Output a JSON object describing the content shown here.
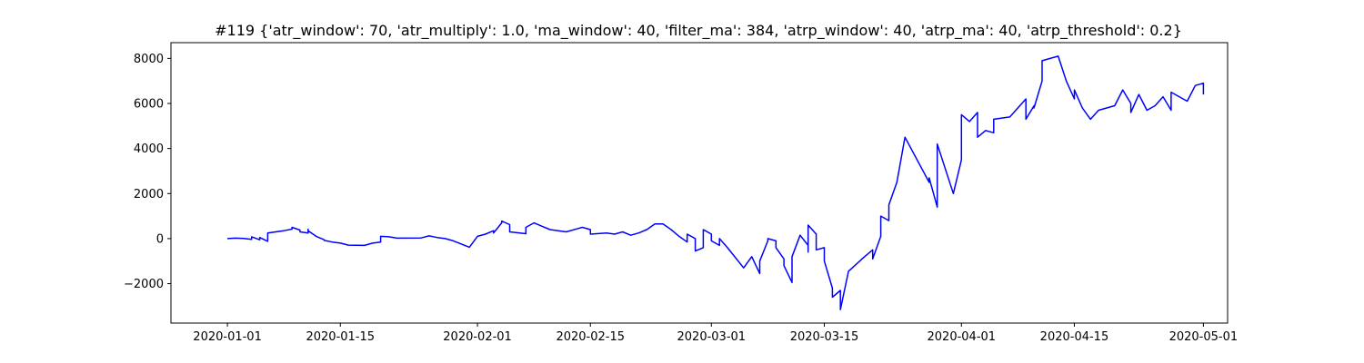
{
  "chart_data": {
    "type": "line",
    "title": "#119 {'atr_window': 70, 'atr_multiply': 1.0, 'ma_window': 40, 'filter_ma': 384, 'atrp_window': 40, 'atrp_ma': 40, 'atrp_threshold': 0.2}",
    "xlabel": "",
    "ylabel": "",
    "grid": false,
    "legend": "none",
    "x_type": "date",
    "xlim": [
      "2019-12-25",
      "2020-05-04"
    ],
    "ylim": [
      -3750,
      8700
    ],
    "x_ticks": [
      "2020-01-01",
      "2020-01-15",
      "2020-02-01",
      "2020-02-15",
      "2020-03-01",
      "2020-03-15",
      "2020-04-01",
      "2020-04-15",
      "2020-05-01"
    ],
    "y_ticks": [
      -2000,
      0,
      2000,
      4000,
      6000,
      8000
    ],
    "series": [
      {
        "color": "#0000ff",
        "points": [
          [
            "2020-01-01",
            0
          ],
          [
            "2020-01-02",
            20
          ],
          [
            "2020-01-03",
            10
          ],
          [
            "2020-01-04",
            -30
          ],
          [
            "2020-01-04",
            80
          ],
          [
            "2020-01-05",
            -50
          ],
          [
            "2020-01-05",
            50
          ],
          [
            "2020-01-06",
            -120
          ],
          [
            "2020-01-06",
            250
          ],
          [
            "2020-01-08",
            350
          ],
          [
            "2020-01-09",
            420
          ],
          [
            "2020-01-09",
            500
          ],
          [
            "2020-01-10",
            380
          ],
          [
            "2020-01-10",
            300
          ],
          [
            "2020-01-11",
            250
          ],
          [
            "2020-01-11",
            420
          ],
          [
            "2020-01-11",
            350
          ],
          [
            "2020-01-12",
            100
          ],
          [
            "2020-01-13",
            -50
          ],
          [
            "2020-01-13",
            -80
          ],
          [
            "2020-01-14",
            -150
          ],
          [
            "2020-01-15",
            -200
          ],
          [
            "2020-01-16",
            -290
          ],
          [
            "2020-01-18",
            -300
          ],
          [
            "2020-01-19",
            -200
          ],
          [
            "2020-01-20",
            -150
          ],
          [
            "2020-01-20",
            100
          ],
          [
            "2020-01-21",
            80
          ],
          [
            "2020-01-22",
            20
          ],
          [
            "2020-01-25",
            30
          ],
          [
            "2020-01-26",
            120
          ],
          [
            "2020-01-27",
            50
          ],
          [
            "2020-01-28",
            0
          ],
          [
            "2020-01-29",
            -100
          ],
          [
            "2020-01-31",
            -380
          ],
          [
            "2020-02-01",
            100
          ],
          [
            "2020-02-02",
            200
          ],
          [
            "2020-02-03",
            350
          ],
          [
            "2020-02-03",
            250
          ],
          [
            "2020-02-04",
            700
          ],
          [
            "2020-02-04",
            780
          ],
          [
            "2020-02-05",
            620
          ],
          [
            "2020-02-05",
            300
          ],
          [
            "2020-02-07",
            220
          ],
          [
            "2020-02-07",
            500
          ],
          [
            "2020-02-08",
            700
          ],
          [
            "2020-02-09",
            550
          ],
          [
            "2020-02-10",
            400
          ],
          [
            "2020-02-11",
            350
          ],
          [
            "2020-02-12",
            300
          ],
          [
            "2020-02-14",
            500
          ],
          [
            "2020-02-15",
            400
          ],
          [
            "2020-02-15",
            200
          ],
          [
            "2020-02-17",
            250
          ],
          [
            "2020-02-18",
            200
          ],
          [
            "2020-02-19",
            300
          ],
          [
            "2020-02-20",
            150
          ],
          [
            "2020-02-21",
            250
          ],
          [
            "2020-02-22",
            400
          ],
          [
            "2020-02-23",
            650
          ],
          [
            "2020-02-24",
            650
          ],
          [
            "2020-02-25",
            400
          ],
          [
            "2020-02-26",
            100
          ],
          [
            "2020-02-27",
            -150
          ],
          [
            "2020-02-27",
            200
          ],
          [
            "2020-02-28",
            0
          ],
          [
            "2020-02-28",
            -550
          ],
          [
            "2020-02-29",
            -400
          ],
          [
            "2020-02-29",
            400
          ],
          [
            "2020-03-01",
            200
          ],
          [
            "2020-03-01",
            -100
          ],
          [
            "2020-03-02",
            -300
          ],
          [
            "2020-03-02",
            0
          ],
          [
            "2020-03-03",
            -400
          ],
          [
            "2020-03-05",
            -1300
          ],
          [
            "2020-03-06",
            -800
          ],
          [
            "2020-03-07",
            -1550
          ],
          [
            "2020-03-07",
            -1000
          ],
          [
            "2020-03-08",
            -100
          ],
          [
            "2020-03-08",
            0
          ],
          [
            "2020-03-09",
            -100
          ],
          [
            "2020-03-09",
            -400
          ],
          [
            "2020-03-10",
            -900
          ],
          [
            "2020-03-10",
            -1200
          ],
          [
            "2020-03-11",
            -1950
          ],
          [
            "2020-03-11",
            -800
          ],
          [
            "2020-03-12",
            150
          ],
          [
            "2020-03-13",
            -300
          ],
          [
            "2020-03-13",
            -600
          ],
          [
            "2020-03-13",
            600
          ],
          [
            "2020-03-14",
            200
          ],
          [
            "2020-03-14",
            -500
          ],
          [
            "2020-03-15",
            -400
          ],
          [
            "2020-03-15",
            -1000
          ],
          [
            "2020-03-16",
            -2200
          ],
          [
            "2020-03-16",
            -2600
          ],
          [
            "2020-03-17",
            -2300
          ],
          [
            "2020-03-17",
            -3150
          ],
          [
            "2020-03-18",
            -1450
          ],
          [
            "2020-03-20",
            -800
          ],
          [
            "2020-03-21",
            -500
          ],
          [
            "2020-03-21",
            -900
          ],
          [
            "2020-03-22",
            100
          ],
          [
            "2020-03-22",
            1000
          ],
          [
            "2020-03-23",
            800
          ],
          [
            "2020-03-23",
            1500
          ],
          [
            "2020-03-24",
            2500
          ],
          [
            "2020-03-25",
            4500
          ],
          [
            "2020-03-28",
            2500
          ],
          [
            "2020-03-28",
            2700
          ],
          [
            "2020-03-29",
            1400
          ],
          [
            "2020-03-29",
            4200
          ],
          [
            "2020-03-31",
            2000
          ],
          [
            "2020-04-01",
            3500
          ],
          [
            "2020-04-01",
            5500
          ],
          [
            "2020-04-02",
            5200
          ],
          [
            "2020-04-03",
            5600
          ],
          [
            "2020-04-03",
            4500
          ],
          [
            "2020-04-04",
            4800
          ],
          [
            "2020-04-05",
            4700
          ],
          [
            "2020-04-05",
            5300
          ],
          [
            "2020-04-07",
            5400
          ],
          [
            "2020-04-09",
            6200
          ],
          [
            "2020-04-09",
            5300
          ],
          [
            "2020-04-10",
            5900
          ],
          [
            "2020-04-10",
            5800
          ],
          [
            "2020-04-11",
            7000
          ],
          [
            "2020-04-11",
            7900
          ],
          [
            "2020-04-13",
            8100
          ],
          [
            "2020-04-14",
            7000
          ],
          [
            "2020-04-15",
            6200
          ],
          [
            "2020-04-15",
            6600
          ],
          [
            "2020-04-16",
            5800
          ],
          [
            "2020-04-17",
            5300
          ],
          [
            "2020-04-18",
            5700
          ],
          [
            "2020-04-20",
            5900
          ],
          [
            "2020-04-21",
            6600
          ],
          [
            "2020-04-22",
            6000
          ],
          [
            "2020-04-22",
            5600
          ],
          [
            "2020-04-23",
            6400
          ],
          [
            "2020-04-24",
            5700
          ],
          [
            "2020-04-25",
            5900
          ],
          [
            "2020-04-26",
            6300
          ],
          [
            "2020-04-27",
            5700
          ],
          [
            "2020-04-27",
            6500
          ],
          [
            "2020-04-28",
            6300
          ],
          [
            "2020-04-29",
            6100
          ],
          [
            "2020-04-30",
            6800
          ],
          [
            "2020-05-01",
            6900
          ],
          [
            "2020-05-01",
            6400
          ]
        ]
      }
    ]
  }
}
